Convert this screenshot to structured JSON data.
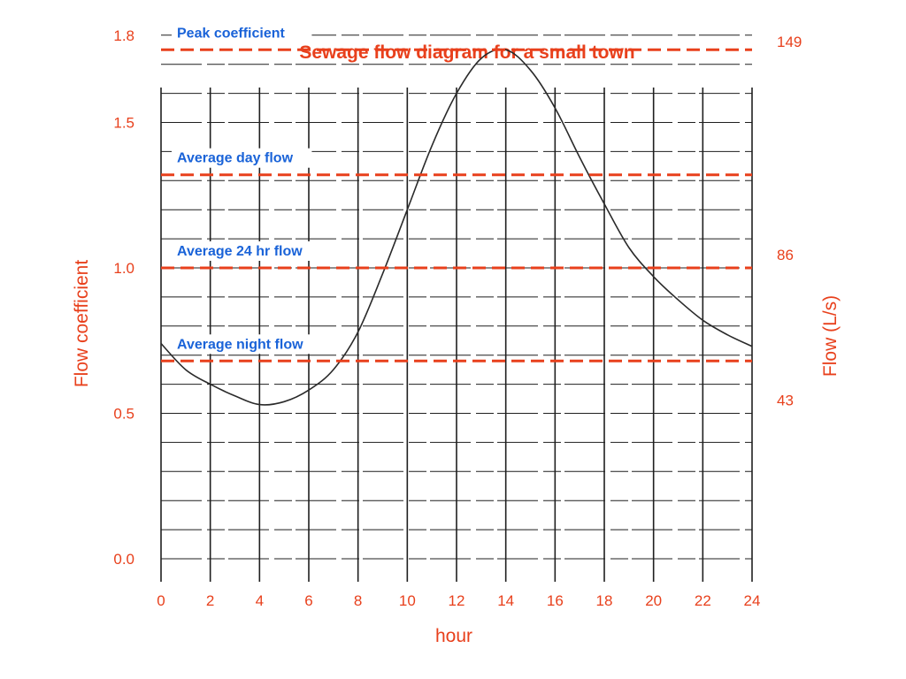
{
  "chart_data": {
    "type": "line",
    "title": "Sewage flow diagram for a small town",
    "xlabel": "hour",
    "ylabel": "Flow coefficient",
    "y2label": "Flow (L/s)",
    "xlim": [
      0,
      24
    ],
    "ylim": [
      0,
      1.8
    ],
    "x_ticks": [
      "0",
      "2",
      "4",
      "6",
      "8",
      "10",
      "12",
      "14",
      "16",
      "18",
      "20",
      "22",
      "24"
    ],
    "y_ticks": [
      "0.0",
      "0.5",
      "1.0",
      "1.5",
      "1.8"
    ],
    "y2_ticks": [
      "43",
      "86",
      "149"
    ],
    "grid": true,
    "series": [
      {
        "x": [
          0,
          1,
          2,
          3,
          4,
          5,
          6,
          7,
          8,
          9,
          10,
          11,
          12,
          13,
          14,
          15,
          16,
          17,
          18,
          19,
          20,
          21,
          22,
          23,
          24
        ],
        "y": [
          0.74,
          0.65,
          0.6,
          0.56,
          0.53,
          0.54,
          0.58,
          0.65,
          0.78,
          0.98,
          1.2,
          1.42,
          1.6,
          1.72,
          1.75,
          1.68,
          1.55,
          1.38,
          1.22,
          1.07,
          0.97,
          0.89,
          0.82,
          0.77,
          0.73
        ]
      }
    ],
    "reference_lines": [
      {
        "label": "Peak coefficient",
        "y": 1.75
      },
      {
        "label": "Average day flow",
        "y": 1.32
      },
      {
        "label": "Average 24 hr flow",
        "y": 1.0
      },
      {
        "label": "Average night flow",
        "y": 0.68
      }
    ]
  },
  "colors": {
    "title": "#e8401c",
    "axis_text": "#e8401c",
    "reference_line": "#e8401c",
    "reference_label": "#1a63d8",
    "curve": "#2a2a2a",
    "grid": "#1f1f1f"
  }
}
